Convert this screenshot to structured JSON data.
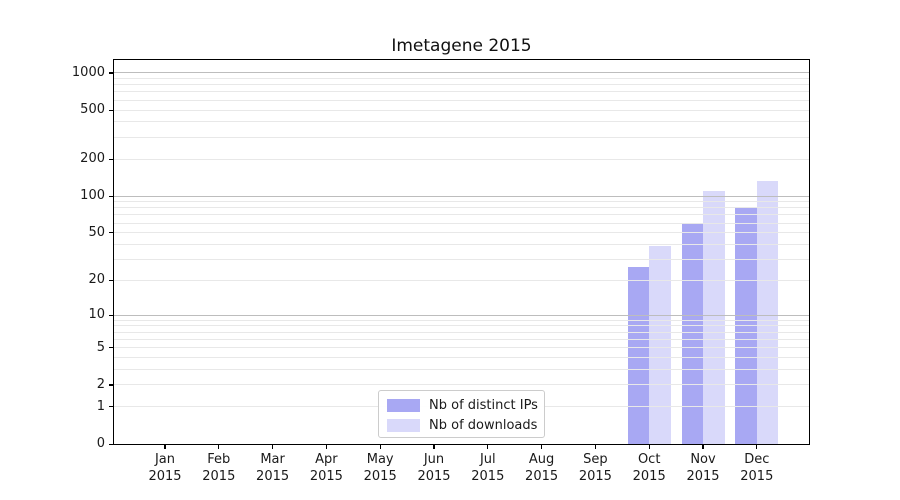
{
  "chart_data": {
    "type": "bar",
    "title": "Imetagene 2015",
    "scale": "log1p",
    "year_label": "2015",
    "categories": [
      "Jan",
      "Feb",
      "Mar",
      "Apr",
      "May",
      "Jun",
      "Jul",
      "Aug",
      "Sep",
      "Oct",
      "Nov",
      "Dec"
    ],
    "series": [
      {
        "key": "distinct-ips",
        "name": "Nb of distinct IPs",
        "color": "#a8a8f3",
        "values": [
          0,
          0,
          0,
          0,
          0,
          0,
          0,
          0,
          0,
          26,
          60,
          80
        ]
      },
      {
        "key": "downloads",
        "name": "Nb of downloads",
        "color": "#d9d9fa",
        "values": [
          0,
          0,
          0,
          0,
          0,
          0,
          0,
          0,
          0,
          39,
          110,
          133
        ]
      }
    ],
    "yticks": [
      0,
      1,
      2,
      5,
      10,
      20,
      50,
      100,
      200,
      500,
      1000
    ],
    "ylim": [
      0,
      1270
    ],
    "grid": true,
    "legend_position": "lower center",
    "colors": {
      "major_grid": "#bdbdbd",
      "minor_grid": "#e8e8e8",
      "spine": "#000000",
      "text": "#1a1a1a"
    }
  }
}
